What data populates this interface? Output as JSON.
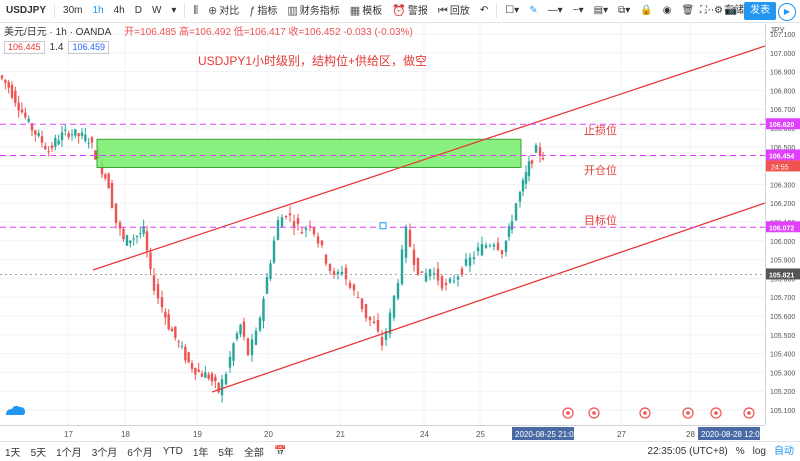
{
  "toolbar": {
    "symbol": "USDJPY",
    "intervals": [
      "30m",
      "1h",
      "4h",
      "D",
      "W"
    ],
    "compare_label": "对比",
    "indicators_label": "指标",
    "financials_label": "财务指标",
    "templates_label": "模板",
    "alert_label": "警报",
    "replay_label": "回放",
    "publish_label": "发表",
    "settings_label": "存储"
  },
  "legend": {
    "title": "美元/日元 · 1h · OANDA",
    "ohlc": "开=106.485 高=106.492 低=106.417 收=106.452 -0.033 (-0.03%)",
    "sell_price": "106.445",
    "spread": "1.4",
    "buy_price": "106.459"
  },
  "annotations": {
    "headline": "USDJPY1小时级别，结构位+供给区，做空",
    "stop_loss": "止损位",
    "entry": "开仓位",
    "target": "目标位"
  },
  "price_axis": {
    "currency": "JPY",
    "ticks": [
      "107.100",
      "107.000",
      "106.900",
      "106.800",
      "106.700",
      "106.600",
      "106.500",
      "106.400",
      "106.300",
      "106.200",
      "106.100",
      "106.000",
      "105.900",
      "105.800",
      "105.700",
      "105.600",
      "105.500",
      "105.400",
      "105.300",
      "105.200",
      "105.100"
    ],
    "labels": {
      "stop": "106.620",
      "current": "106.454",
      "countdown": "24:55",
      "target": "106.072",
      "crosshair": "105.821"
    }
  },
  "time_axis": {
    "labels": [
      "17",
      "18",
      "19",
      "20",
      "21",
      "24",
      "25",
      "27",
      "28"
    ],
    "highlight_left": "2020-08-25 21:00",
    "highlight_right": "2020-08-28 12:00"
  },
  "bottombar": {
    "ranges": [
      "1天",
      "5天",
      "1个月",
      "3个月",
      "6个月",
      "YTD",
      "1年",
      "5年",
      "全部"
    ],
    "clock": "22:35:05 (UTC+8)",
    "percent": "%",
    "log": "log",
    "auto": "自动"
  },
  "colors": {
    "up": "#26a69a",
    "down": "#ef5350",
    "channel": "#e53935",
    "dash": "#e040fb",
    "zone": "#76ee6a",
    "accent": "#2196f3"
  }
}
